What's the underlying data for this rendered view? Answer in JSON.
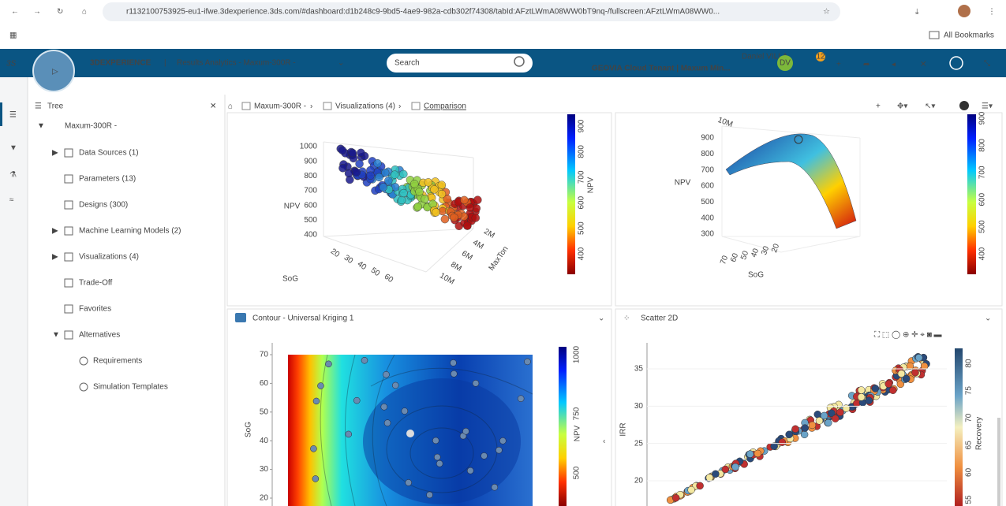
{
  "browser": {
    "url": "r1132100753925-eu1-ifwe.3dexperience.3ds.com/#dashboard:d1b248c9-9bd5-4ae9-982a-cdb302f74308/tabId:AFztLWmA08WW0bT9nq-/fullscreen:AFztLWmA08WW0...",
    "bookmarks": "All Bookmarks"
  },
  "header": {
    "brand": "3DEXPERIENCE",
    "app": "Results Analytics - Maxum-300R -",
    "search": "Search",
    "user": "Daniel VILLA",
    "tenant": "GEOVIA Cloud Tenant | Maxum Min...",
    "avatar": "DV",
    "badge": "12"
  },
  "tree": {
    "title": "Tree",
    "root": "Maxum-300R -",
    "items": [
      "Data Sources (1)",
      "Parameters (13)",
      "Designs (300)",
      "Machine Learning Models (2)",
      "Visualizations (4)",
      "Trade-Off",
      "Favorites",
      "Alternatives"
    ],
    "subitems": [
      "Requirements",
      "Simulation Templates"
    ]
  },
  "breadcrumb": [
    "Maxum-300R -",
    "Visualizations (4)",
    "Comparison"
  ],
  "panels": {
    "scatter3d": {
      "z_label": "NPV",
      "zticks": [
        1000,
        900,
        800,
        700,
        600,
        500,
        400
      ],
      "x_label": "SoG",
      "xticks": [
        20,
        30,
        40,
        50,
        60
      ],
      "y_label": "MaxTon",
      "yticks": [
        "2M",
        "4M",
        "6M",
        "8M",
        "10M"
      ],
      "colorbar_label": "NPV",
      "colorbar_ticks": [
        900,
        800,
        700,
        600,
        500,
        400
      ]
    },
    "surface3d": {
      "z_label": "NPV",
      "zticks": [
        900,
        800,
        700,
        600,
        500,
        400,
        300
      ],
      "x_label": "SoG",
      "xticks": [
        70,
        60,
        50,
        40,
        30,
        20
      ],
      "y_tick": "10M",
      "colorbar_ticks": [
        900,
        800,
        700,
        600,
        500,
        400
      ]
    },
    "contour": {
      "title": "Contour - Universal Kriging 1",
      "y_label": "SoG",
      "yticks": [
        70,
        60,
        50,
        40,
        30,
        20
      ],
      "colorbar_label": "NPV",
      "colorbar_ticks": [
        1000,
        750,
        500
      ]
    },
    "scatter2d": {
      "title": "Scatter 2D",
      "y_label": "IRR",
      "yticks": [
        35,
        30,
        25,
        20
      ],
      "colorbar_label": "Recovery",
      "colorbar_ticks": [
        80,
        75,
        70,
        65,
        60,
        55
      ]
    }
  }
}
